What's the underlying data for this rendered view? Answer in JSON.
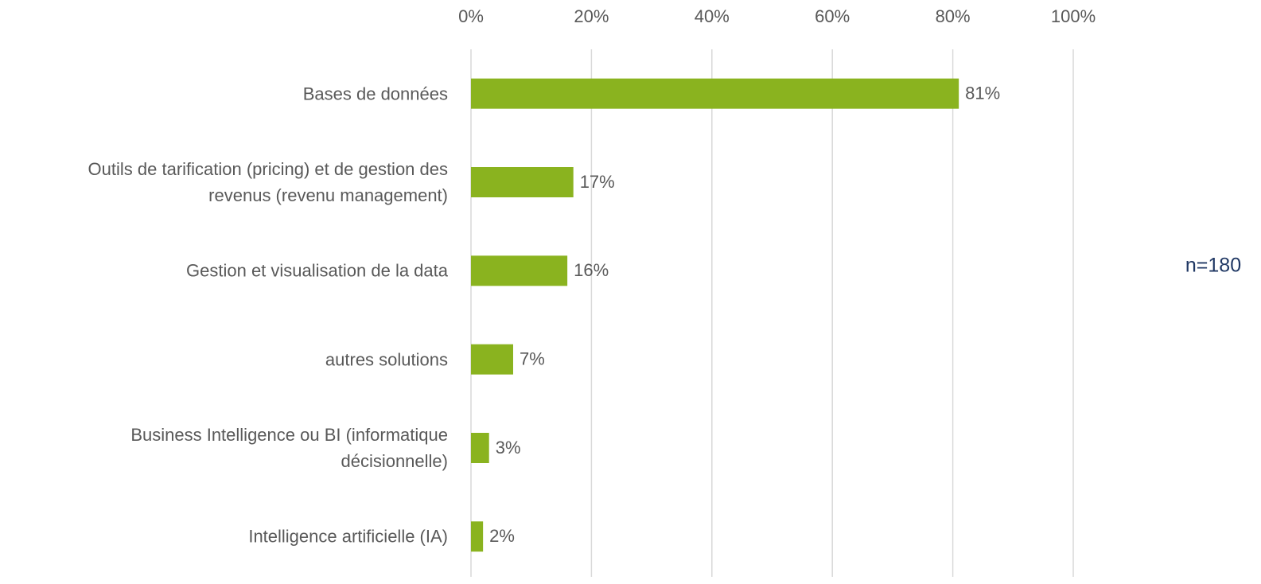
{
  "chart_data": {
    "type": "bar",
    "orientation": "horizontal",
    "categories": [
      "Bases de données",
      "Outils de tarification (pricing) et de gestion des\nrevenus (revenu management)",
      "Gestion et visualisation de la data",
      "autres solutions",
      "Business Intelligence ou BI (informatique\ndécisionnelle)",
      "Intelligence artificielle (IA)"
    ],
    "values": [
      81,
      17,
      16,
      7,
      3,
      2
    ],
    "value_labels": [
      "81%",
      "17%",
      "16%",
      "7%",
      "3%",
      "2%"
    ],
    "color": "#8ab31f",
    "xlim": [
      0,
      100
    ],
    "xticks": [
      {
        "value": 0,
        "label": "0%"
      },
      {
        "value": 20,
        "label": "20%"
      },
      {
        "value": 40,
        "label": "40%"
      },
      {
        "value": 60,
        "label": "60%"
      },
      {
        "value": 80,
        "label": "80%"
      },
      {
        "value": 100,
        "label": "100%"
      }
    ],
    "grid": true,
    "annotation": "n=180"
  }
}
